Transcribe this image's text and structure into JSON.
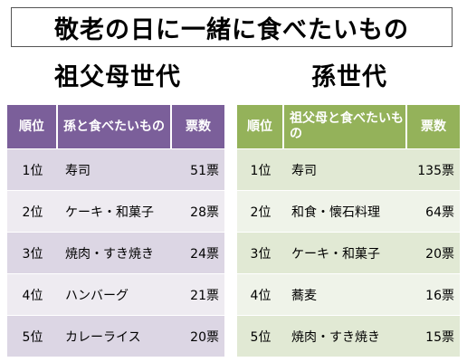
{
  "title": "敬老の日に一緒に食べたいもの",
  "grandparents": {
    "heading": "祖父母世代",
    "columns": {
      "rank": "順位",
      "item": "孫と食べたいもの",
      "votes": "票数"
    },
    "rows": [
      {
        "rank": "1位",
        "item": "寿司",
        "votes": "51票"
      },
      {
        "rank": "2位",
        "item": "ケーキ・和菓子",
        "votes": "28票"
      },
      {
        "rank": "3位",
        "item": "焼肉・すき焼き",
        "votes": "24票"
      },
      {
        "rank": "4位",
        "item": "ハンバーグ",
        "votes": "21票"
      },
      {
        "rank": "5位",
        "item": "カレーライス",
        "votes": "20票"
      }
    ]
  },
  "grandchildren": {
    "heading": "孫世代",
    "columns": {
      "rank": "順位",
      "item": "祖父母と食べたいもの",
      "votes": "票数"
    },
    "rows": [
      {
        "rank": "1位",
        "item": "寿司",
        "votes": "135票"
      },
      {
        "rank": "2位",
        "item": "和食・懐石料理",
        "votes": "64票"
      },
      {
        "rank": "3位",
        "item": "ケーキ・和菓子",
        "votes": "20票"
      },
      {
        "rank": "4位",
        "item": "蕎麦",
        "votes": "16票"
      },
      {
        "rank": "5位",
        "item": "焼肉・すき焼き",
        "votes": "15票"
      }
    ]
  },
  "colors": {
    "grandparents_header": "#7b5f9a",
    "grandparents_row_dark": "#dcd6e4",
    "grandparents_row_light": "#eeebf1",
    "grandchildren_header": "#94b25a",
    "grandchildren_row_dark": "#e1e9d4",
    "grandchildren_row_light": "#eff3e9"
  }
}
